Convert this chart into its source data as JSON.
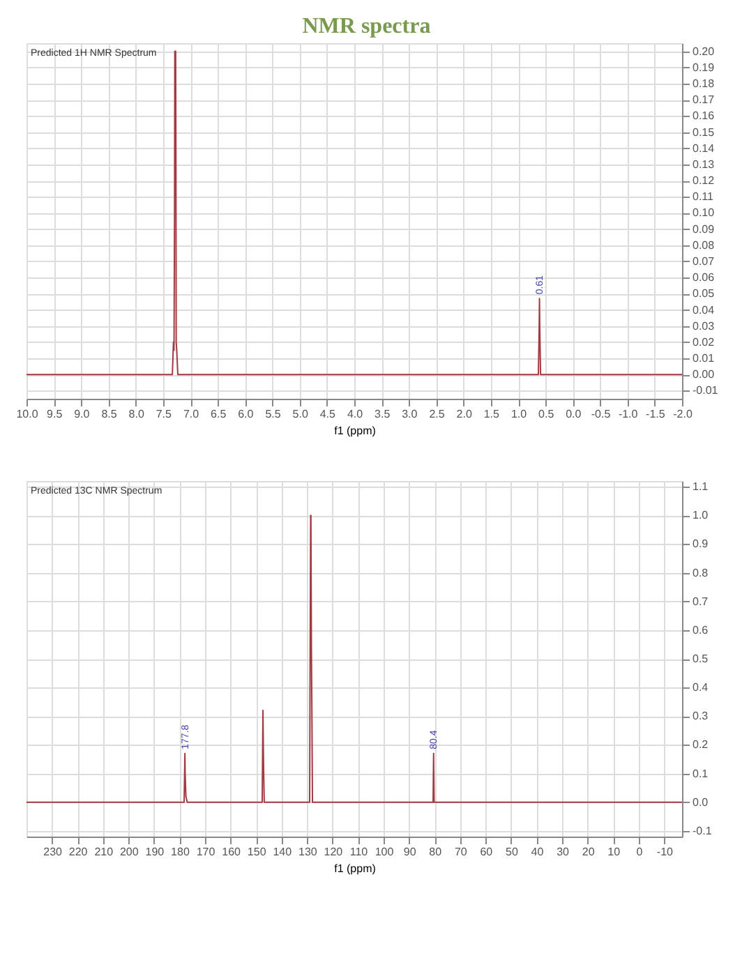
{
  "chart_data": [
    {
      "type": "line",
      "title": "NMR spectra",
      "subtitle": "Predicted 1H NMR Spectrum",
      "xlabel": "f1 (ppm)",
      "series": [
        {
          "color": "#a23a44",
          "x": [
            10.0,
            7.33,
            7.31,
            7.3,
            7.29,
            7.285,
            7.28,
            7.27,
            7.265,
            7.26,
            7.25,
            7.23,
            0.63,
            0.615,
            0.61,
            0.605,
            0.59,
            -2.0
          ],
          "values": [
            0,
            0,
            0.02,
            0.015,
            0.1,
            0.2,
            0.2,
            0.2,
            0.14,
            0.02,
            0.015,
            0,
            0,
            0.03,
            0.047,
            0.03,
            0,
            0
          ]
        }
      ],
      "annotations": [
        {
          "text": "0.61",
          "x": 0.61,
          "y": 0.047
        }
      ],
      "xlim": [
        10.0,
        -2.0
      ],
      "xticks": [
        {
          "value": 10,
          "label": "10.0"
        },
        9.5,
        {
          "value": 9,
          "label": "9.0"
        },
        8.5,
        {
          "value": 8,
          "label": "8.0"
        },
        7.5,
        {
          "value": 7,
          "label": "7.0"
        },
        6.5,
        {
          "value": 6,
          "label": "6.0"
        },
        5.5,
        {
          "value": 5,
          "label": "5.0"
        },
        4.5,
        {
          "value": 4,
          "label": "4.0"
        },
        3.5,
        {
          "value": 3,
          "label": "3.0"
        },
        2.5,
        {
          "value": 2,
          "label": "2.0"
        },
        1.5,
        {
          "value": 1,
          "label": "1.0"
        },
        0.5,
        {
          "value": 0,
          "label": "0.0"
        },
        -0.5,
        {
          "value": -1,
          "label": "-1.0"
        },
        -1.5,
        {
          "value": -2,
          "label": "-2.0"
        }
      ],
      "ylim": [
        -0.015,
        0.205
      ],
      "yticks": [
        -0.01,
        {
          "value": 0,
          "label": "0.00"
        },
        0.01,
        0.02,
        0.03,
        0.04,
        0.05,
        0.06,
        0.07,
        0.08,
        0.09,
        {
          "value": 0.1,
          "label": "0.10"
        },
        0.11,
        0.12,
        0.13,
        0.14,
        0.15,
        0.16,
        0.17,
        0.18,
        0.19,
        {
          "value": 0.2,
          "label": "0.20"
        }
      ],
      "grid": true
    },
    {
      "type": "line",
      "title": "Predicted 13C NMR Spectrum",
      "xlabel": "f1 (ppm)",
      "series": [
        {
          "color": "#a23a44",
          "x": [
            240,
            178.2,
            177.9,
            177.8,
            177.5,
            177.0,
            147.6,
            147.3,
            147.1,
            146.8,
            129.0,
            128.8,
            128.6,
            128.5,
            128.3,
            128.1,
            127.9,
            80.6,
            80.4,
            80.2,
            -17
          ],
          "values": [
            0,
            0,
            0.17,
            0.1,
            0.02,
            0,
            0,
            0.32,
            0.15,
            0,
            0,
            0.53,
            1.0,
            1.0,
            0.53,
            0.3,
            0,
            0,
            0.17,
            0,
            0
          ]
        }
      ],
      "annotations": [
        {
          "text": "177.8",
          "x": 177.8,
          "y": 0.17
        },
        {
          "text": "80.4",
          "x": 80.4,
          "y": 0.17
        }
      ],
      "xlim": [
        240,
        -17
      ],
      "xticks": [
        230,
        220,
        210,
        200,
        190,
        180,
        170,
        160,
        150,
        140,
        130,
        120,
        110,
        100,
        90,
        80,
        70,
        60,
        50,
        40,
        30,
        20,
        10,
        0,
        -10
      ],
      "ylim": [
        -0.12,
        1.12
      ],
      "yticks": [
        -0.1,
        {
          "value": 0,
          "label": "0.0"
        },
        0.1,
        0.2,
        0.3,
        0.4,
        0.5,
        0.6,
        0.7,
        0.8,
        0.9,
        {
          "value": 1,
          "label": "1.0"
        },
        1.1
      ],
      "grid": true
    }
  ]
}
